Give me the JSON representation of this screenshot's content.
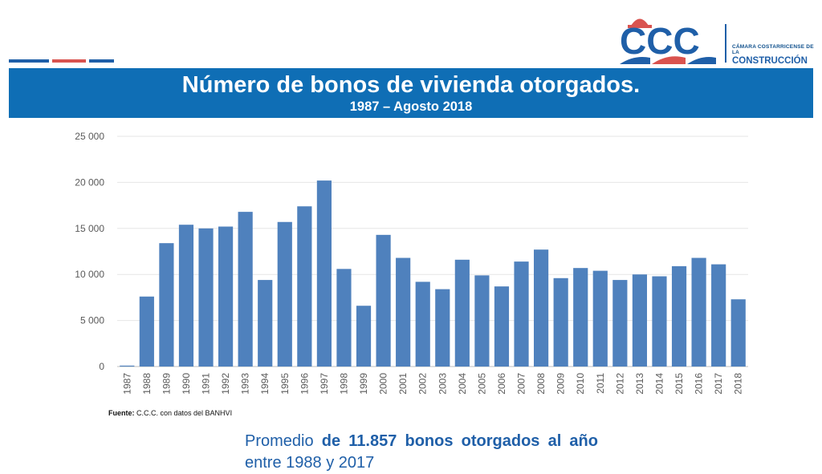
{
  "header": {
    "title": "Número de bonos de vivienda otorgados.",
    "subtitle": "1987 – Agosto 2018"
  },
  "logo": {
    "letters": "CCC",
    "line1": "CÁMARA COSTARRICENSE DE LA",
    "line2": "CONSTRUCCIÓN",
    "icon": "hard-hat-icon"
  },
  "colors": {
    "brand_blue": "#0f6eb5",
    "bar_blue": "#4f81bd",
    "accent_red": "#d9534f",
    "logo_blue": "#1f5fa8"
  },
  "chart_data": {
    "type": "bar",
    "categories": [
      "1987",
      "1988",
      "1989",
      "1990",
      "1991",
      "1992",
      "1993",
      "1994",
      "1995",
      "1996",
      "1997",
      "1998",
      "1999",
      "2000",
      "2001",
      "2002",
      "2003",
      "2004",
      "2005",
      "2006",
      "2007",
      "2008",
      "2009",
      "2010",
      "2011",
      "2012",
      "2013",
      "2014",
      "2015",
      "2016",
      "2017",
      "2018"
    ],
    "values": [
      100,
      7600,
      13400,
      15400,
      15000,
      15200,
      16800,
      9400,
      15700,
      17400,
      20200,
      10600,
      6600,
      14300,
      11800,
      9200,
      8400,
      11600,
      9900,
      8700,
      11400,
      12700,
      9600,
      10700,
      10400,
      9400,
      10000,
      9800,
      10900,
      11800,
      11100,
      7300
    ],
    "yticks": [
      "0",
      "5 000",
      "10 000",
      "15 000",
      "20 000",
      "25 000"
    ],
    "ylim": [
      0,
      25000
    ],
    "grid": true
  },
  "source": {
    "label": "Fuente:",
    "text": "C.C.C. con datos del BANHVI"
  },
  "summary": {
    "prefix": "Promedio ",
    "bold": "de 11.857 bonos otorgados al año",
    "suffix": " entre 1988 y 2017"
  }
}
